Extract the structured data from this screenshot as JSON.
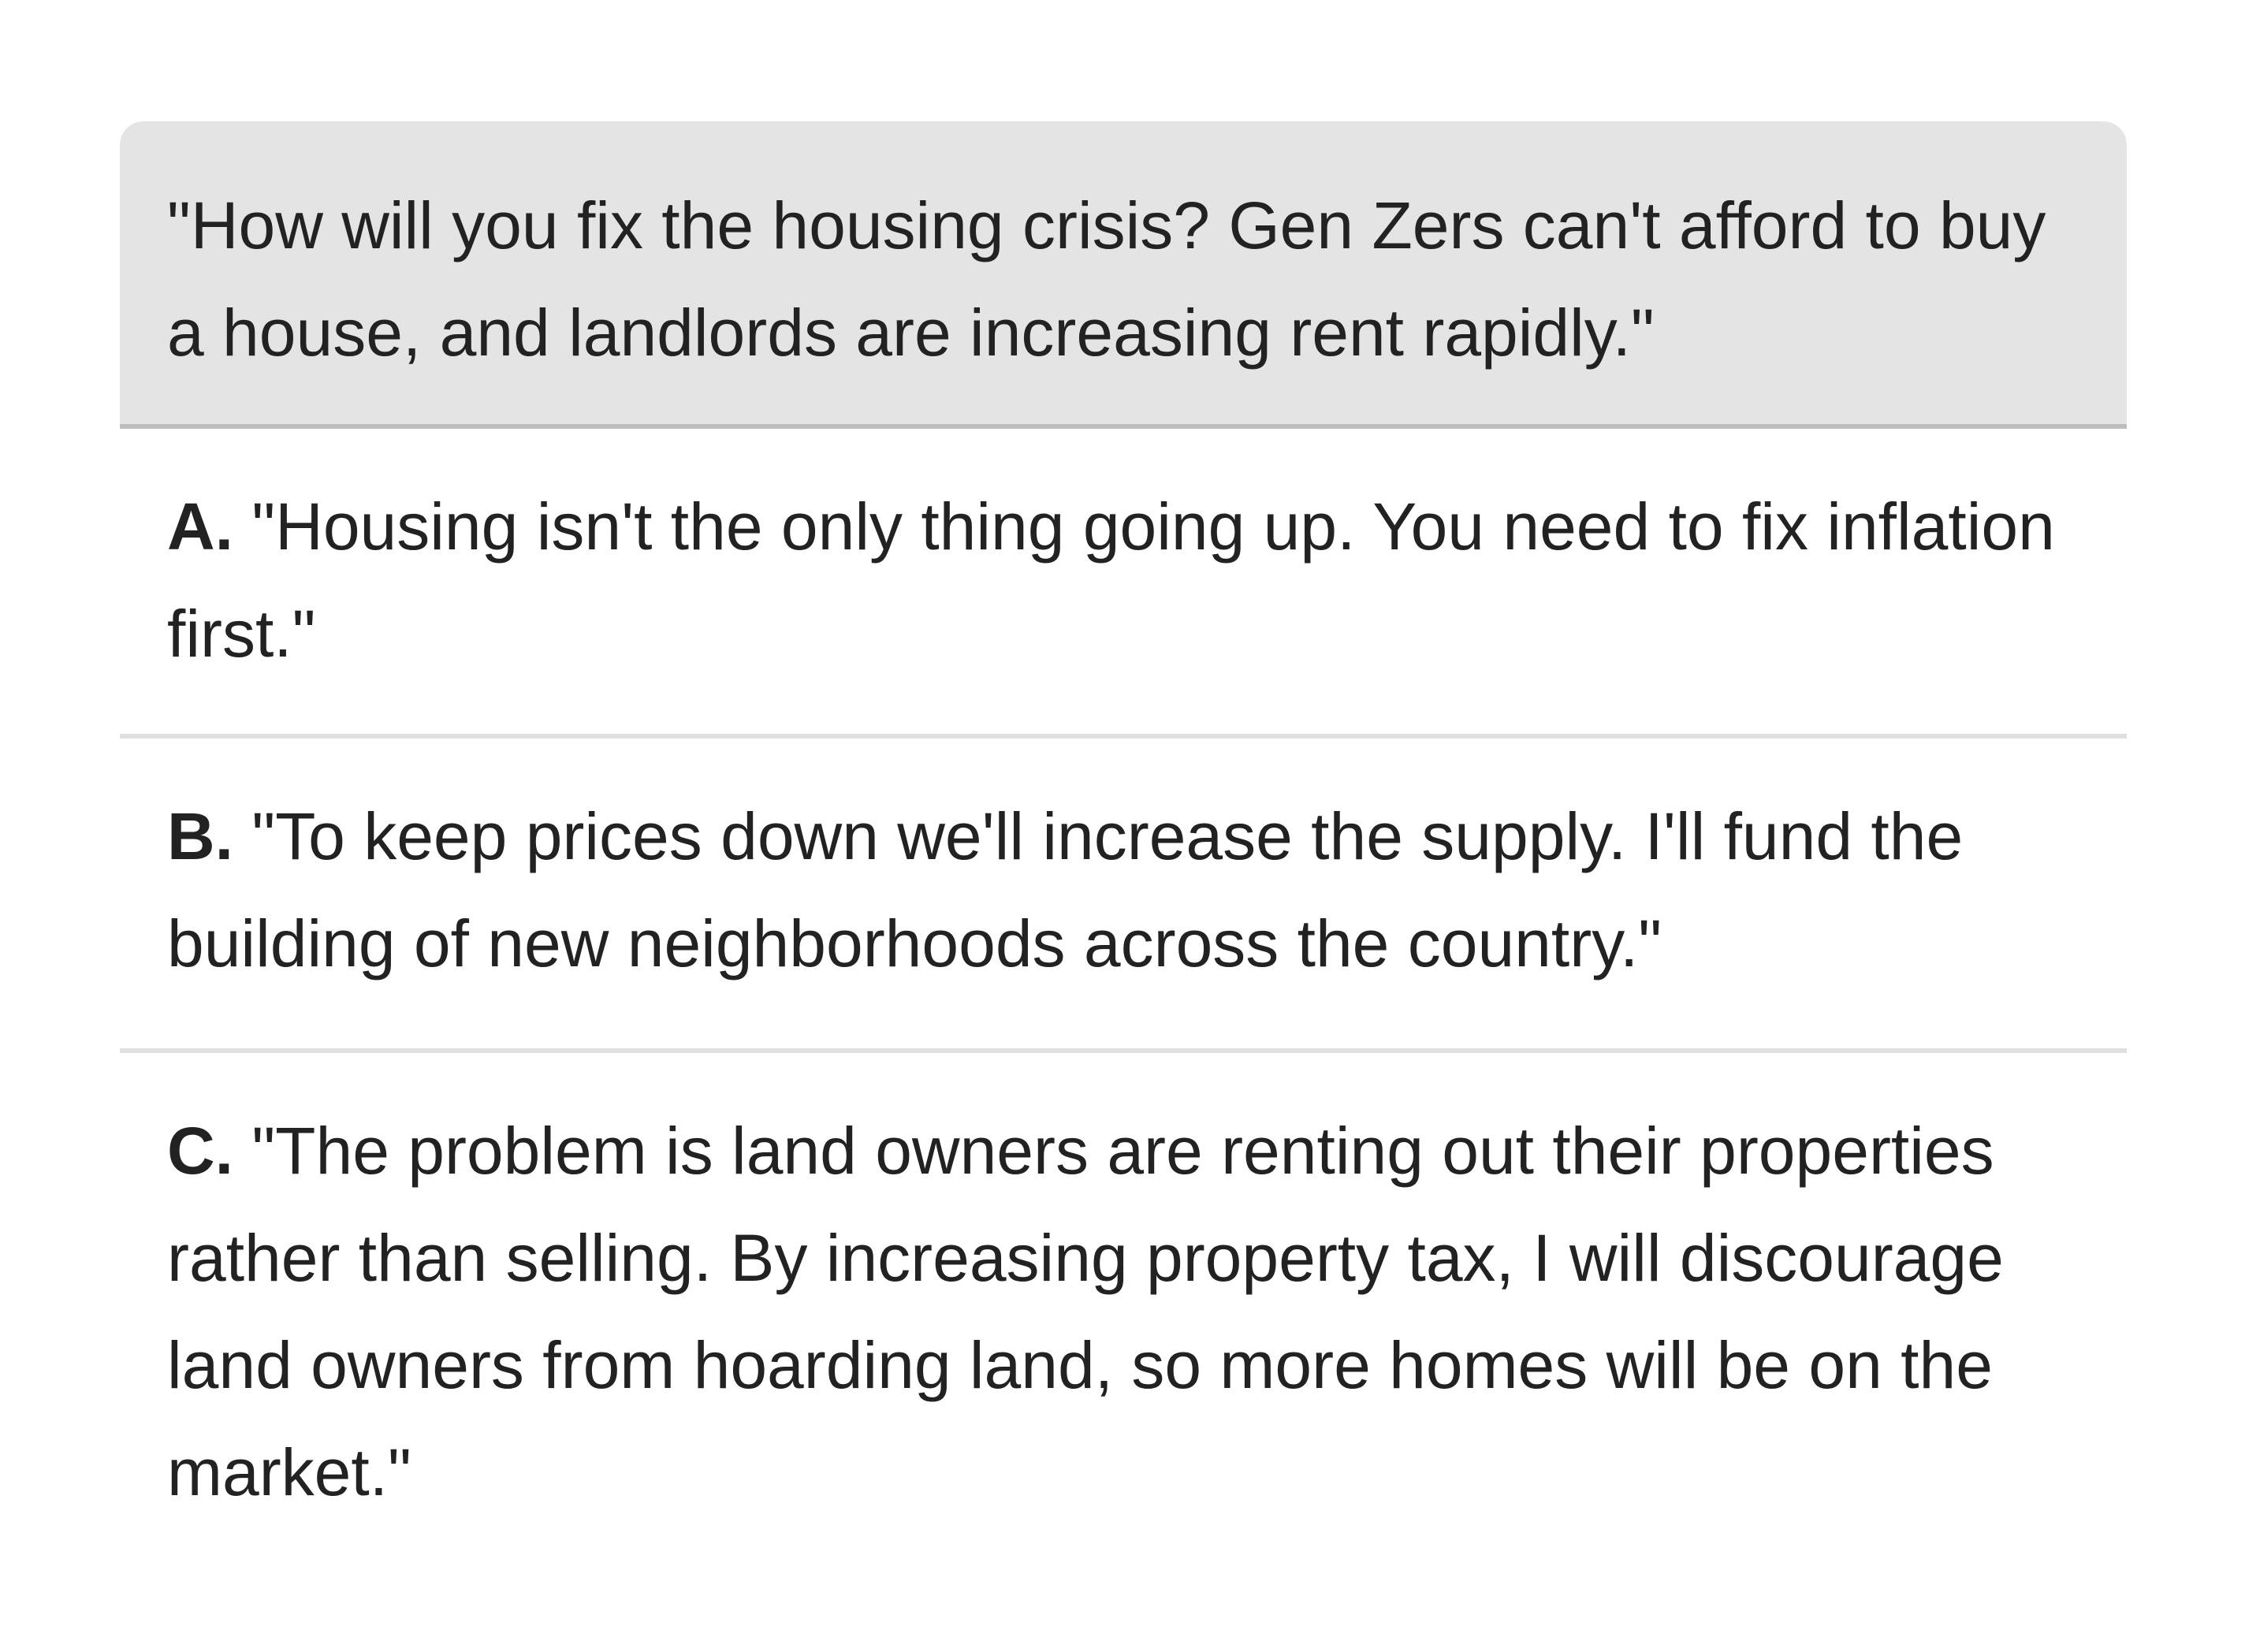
{
  "question": {
    "text": "\"How will you fix the housing crisis? Gen Zers can't afford to buy a house, and landlords are increasing rent rapidly.\""
  },
  "options": [
    {
      "letter": "A.",
      "text": "\"Housing isn't the only thing going up. You need to fix inflation first.\""
    },
    {
      "letter": "B.",
      "text": "\"To keep prices down we'll increase the supply. I'll fund the building of new neighborhoods across the country.\""
    },
    {
      "letter": "C.",
      "text": "\"The problem is land owners are renting out their properties rather than selling. By increasing property tax, I will discourage land owners from hoarding land, so more homes will be on the market.\""
    }
  ],
  "colors": {
    "question_bg": "#e4e4e4",
    "question_border": "#bdbdbd",
    "divider": "#e0e0e0",
    "text": "#222222"
  }
}
